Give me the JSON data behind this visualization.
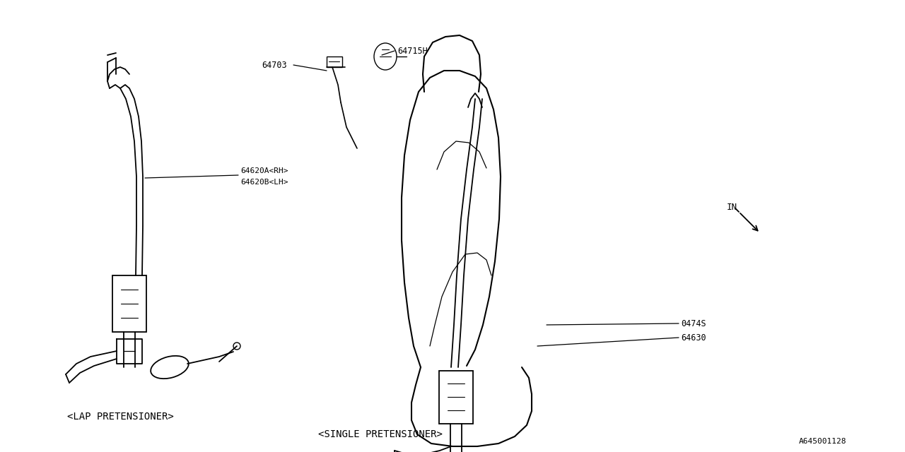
{
  "bg_color": "#ffffff",
  "line_color": "#000000",
  "text_color": "#000000",
  "figsize": [
    12.8,
    6.4
  ],
  "dpi": 100,
  "label_texts": {
    "64703": "64703",
    "64715H": "64715H",
    "64620A_RH": "64620A<RH>",
    "64620B_LH": "64620B<LH>",
    "0474S": "0474S",
    "64630": "64630",
    "lap_pretensioner": "<LAP PRETENSIONER>",
    "single_pretensioner": "<SINGLE PRETENSIONER>",
    "part_num": "A645001128",
    "in_label": "IN"
  }
}
